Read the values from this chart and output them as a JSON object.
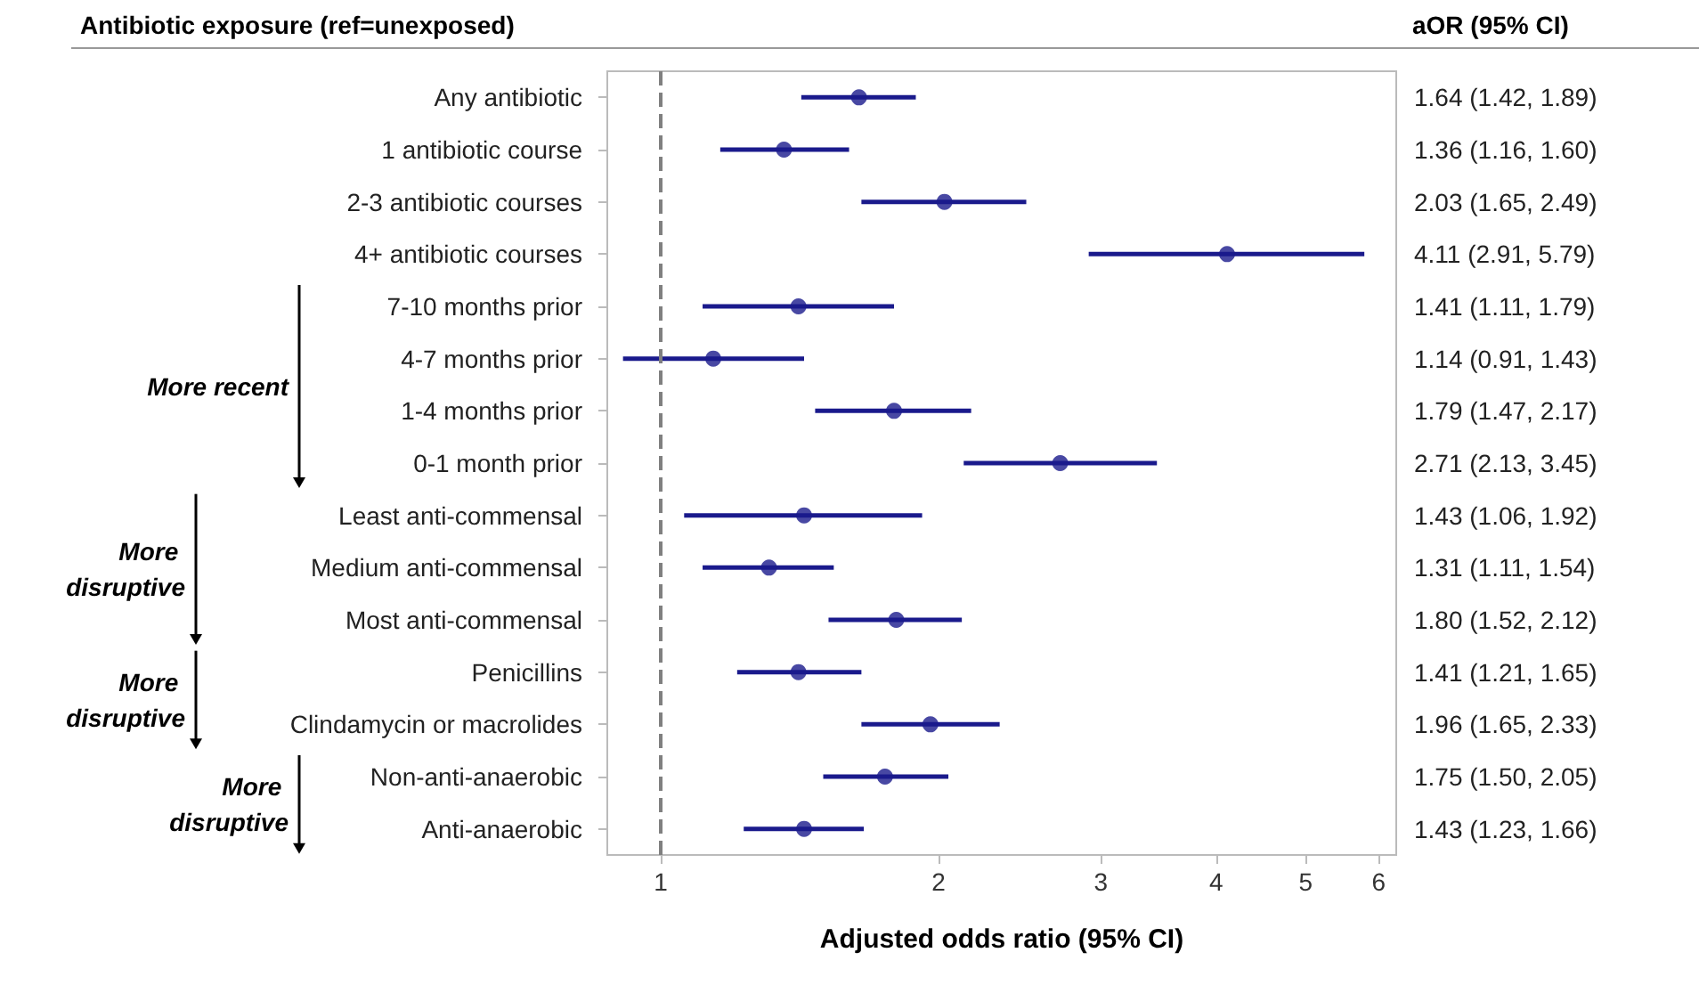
{
  "chart_data": {
    "type": "scatter",
    "orientation": "horizontal",
    "ylabel": "Antibiotic exposure (ref=unexposed)",
    "y2label": "aOR (95% CI)",
    "xlabel": "Adjusted odds ratio (95% CI)",
    "categories": [
      "Any antibiotic",
      "1 antibiotic course",
      "2-3 antibiotic courses",
      "4+ antibiotic courses",
      "7-10 months prior",
      "4-7 months prior",
      "1-4 months prior",
      "0-1 month prior",
      "Least anti-commensal",
      "Medium anti-commensal",
      "Most anti-commensal",
      "Penicillins",
      "Clindamycin or macrolides",
      "Non-anti-anaerobic",
      "Anti-anaerobic"
    ],
    "values": [
      1.64,
      1.36,
      2.03,
      4.11,
      1.41,
      1.14,
      1.79,
      2.71,
      1.43,
      1.31,
      1.8,
      1.41,
      1.96,
      1.75,
      1.43
    ],
    "errors": [
      [
        1.42,
        1.89
      ],
      [
        1.16,
        1.6
      ],
      [
        1.65,
        2.49
      ],
      [
        2.91,
        5.79
      ],
      [
        1.11,
        1.79
      ],
      [
        0.91,
        1.43
      ],
      [
        1.47,
        2.17
      ],
      [
        2.13,
        3.45
      ],
      [
        1.06,
        1.92
      ],
      [
        1.11,
        1.54
      ],
      [
        1.52,
        2.12
      ],
      [
        1.21,
        1.65
      ],
      [
        1.65,
        2.33
      ],
      [
        1.5,
        2.05
      ],
      [
        1.23,
        1.66
      ]
    ],
    "value_labels": [
      "1.64 (1.42, 1.89)",
      "1.36 (1.16, 1.60)",
      "2.03 (1.65, 2.49)",
      "4.11 (2.91, 5.79)",
      "1.41 (1.11, 1.79)",
      "1.14 (0.91, 1.43)",
      "1.79 (1.47, 2.17)",
      "2.71 (2.13, 3.45)",
      "1.43 (1.06, 1.92)",
      "1.31 (1.11, 1.54)",
      "1.80 (1.52, 2.12)",
      "1.41 (1.21, 1.65)",
      "1.96 (1.65, 2.33)",
      "1.75 (1.50, 2.05)",
      "1.43 (1.23, 1.66)"
    ],
    "color": "#1a1a8c",
    "marker": "circle",
    "log": "x",
    "grid": false,
    "xlim": [
      0.875,
      6.27
    ],
    "xticks": [
      1,
      2,
      3,
      4,
      5,
      6
    ],
    "ref_lines": [
      {
        "axis": "x",
        "value": 1,
        "color": "#808080",
        "line_style": "dashed"
      }
    ],
    "annotations": [
      "More recent",
      "More disruptive",
      "More disruptive",
      "More disruptive"
    ]
  }
}
